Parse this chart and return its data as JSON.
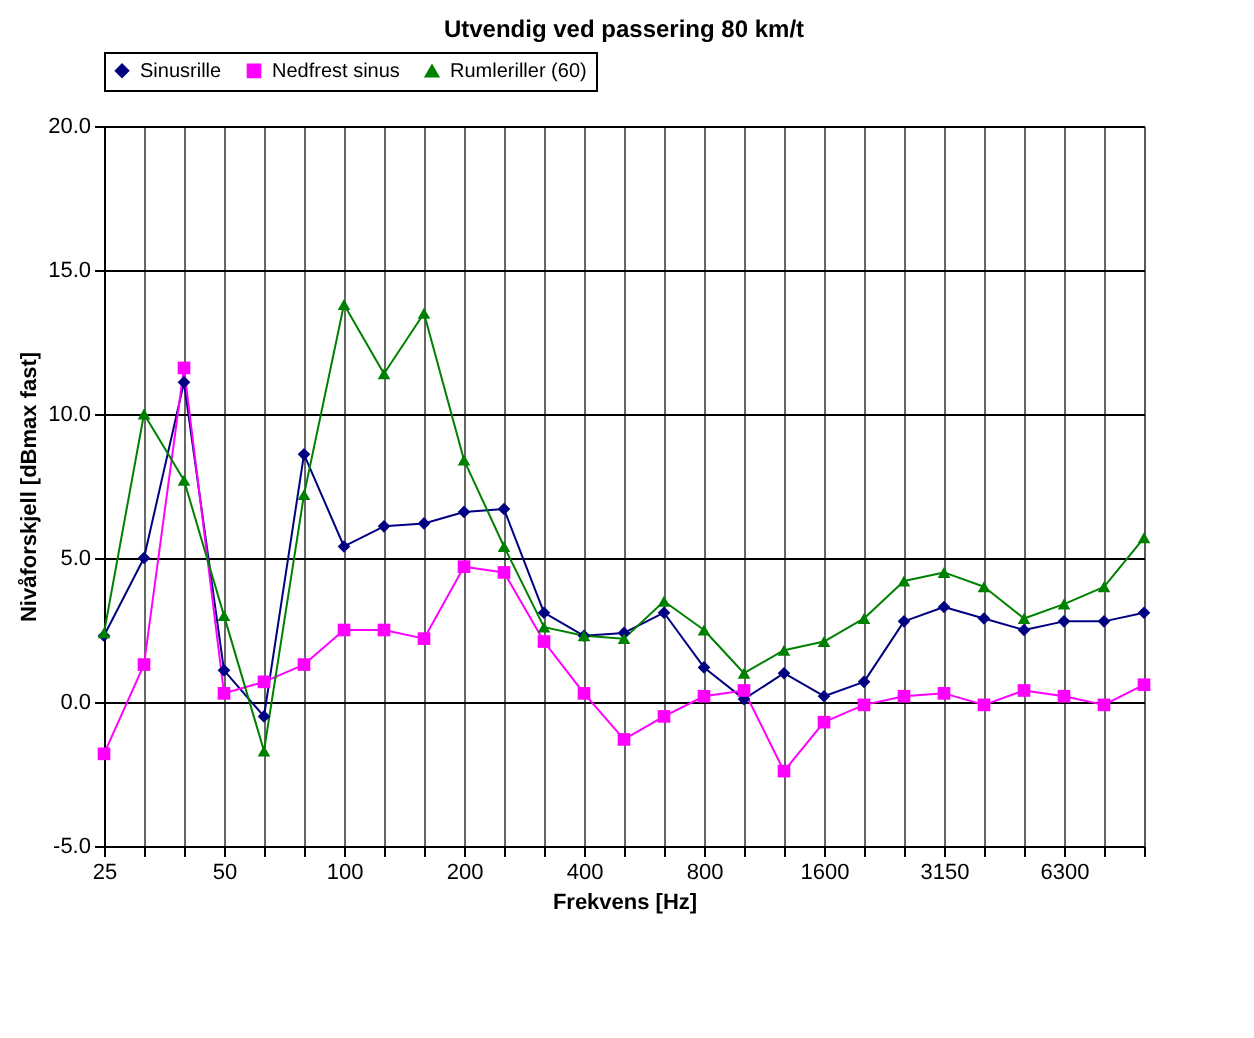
{
  "chart_data": {
    "type": "line",
    "title": "Utvendig ved passering 80 km/t",
    "xlabel": "Frekvens [Hz]",
    "ylabel": "Nivåforskjell [dBmax fast]",
    "categories": [
      "25",
      null,
      null,
      "50",
      null,
      null,
      "100",
      null,
      null,
      "200",
      null,
      null,
      "400",
      null,
      null,
      "800",
      null,
      null,
      "1600",
      null,
      null,
      "3150",
      null,
      null,
      "6300",
      null,
      null
    ],
    "series": [
      {
        "name": "Sinusrille",
        "color": "#000080",
        "marker": "diamond",
        "values": [
          2.3,
          5.0,
          11.1,
          1.1,
          -0.5,
          8.6,
          5.4,
          6.1,
          6.2,
          6.6,
          6.7,
          3.1,
          2.3,
          2.4,
          3.1,
          1.2,
          0.1,
          1.0,
          0.2,
          0.7,
          2.8,
          3.3,
          2.9,
          2.5,
          2.8,
          2.8,
          3.1
        ]
      },
      {
        "name": "Nedfrest sinus",
        "color": "#ff00ff",
        "marker": "square",
        "values": [
          -1.8,
          1.3,
          11.6,
          0.3,
          0.7,
          1.3,
          2.5,
          2.5,
          2.2,
          4.7,
          4.5,
          2.1,
          0.3,
          -1.3,
          -0.5,
          0.2,
          0.4,
          -2.4,
          -0.7,
          -0.1,
          0.2,
          0.3,
          -0.1,
          0.4,
          0.2,
          -0.1,
          0.6
        ]
      },
      {
        "name": "Rumleriller (60)",
        "color": "#008000",
        "marker": "triangle",
        "values": [
          2.4,
          10.0,
          7.7,
          3.0,
          -1.7,
          7.2,
          13.8,
          11.4,
          13.5,
          8.4,
          5.4,
          2.6,
          2.3,
          2.2,
          3.5,
          2.5,
          1.0,
          1.8,
          2.1,
          2.9,
          4.2,
          4.5,
          4.0,
          2.9,
          3.4,
          4.0,
          5.7
        ]
      }
    ],
    "ylim": [
      -5,
      20
    ],
    "yticks": [
      {
        "value": -5,
        "label": "-5.0"
      },
      {
        "value": 0,
        "label": "0.0"
      },
      {
        "value": 5,
        "label": "5.0"
      },
      {
        "value": 10,
        "label": "10.0"
      },
      {
        "value": 15,
        "label": "15.0"
      },
      {
        "value": 20,
        "label": "20.0"
      }
    ],
    "grid": true,
    "legend": "top",
    "line_style": "solid"
  }
}
